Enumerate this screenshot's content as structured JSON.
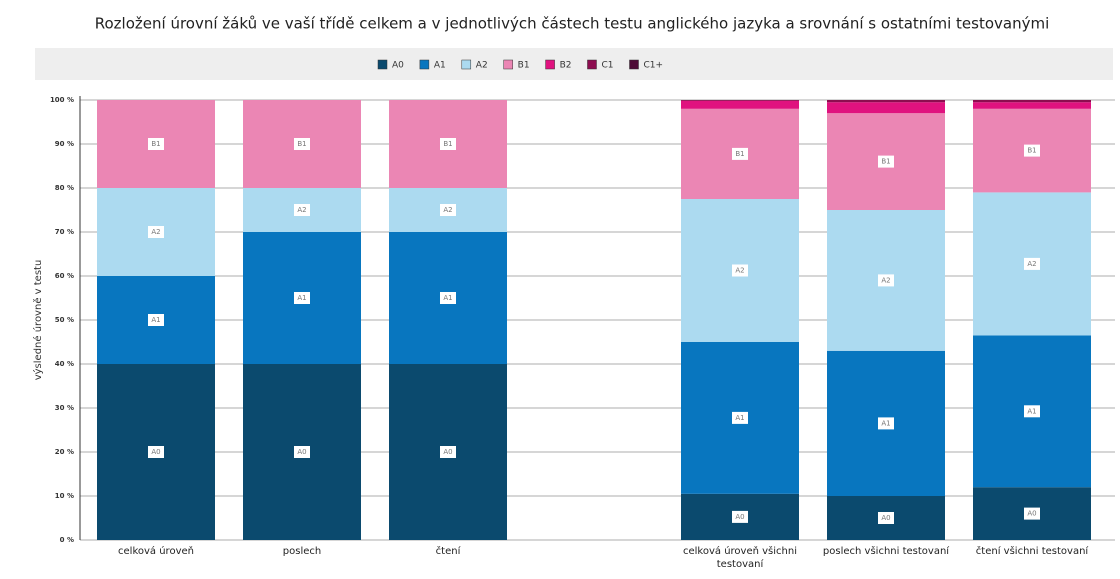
{
  "chart_data": {
    "type": "stacked_bar",
    "title": "Rozložení úrovní žáků ve vaší třídě celkem a v jednotlivých částech testu anglického jazyka a srovnání s ostatními testovanými",
    "ylabel": "výsledné úrovně v testu",
    "categories": [
      "celková úroveň",
      "poslech",
      "čtení",
      null,
      "celková úroveň všichni testovaní",
      "poslech všichni testovaní",
      "čtení všichni testovaní"
    ],
    "series": [
      {
        "name": "A0",
        "color": "#0b4a6e",
        "values": [
          40,
          40,
          40,
          null,
          10.5,
          10,
          12
        ]
      },
      {
        "name": "A1",
        "color": "#0876bf",
        "values": [
          20,
          30,
          30,
          null,
          34.5,
          33,
          34.5
        ]
      },
      {
        "name": "A2",
        "color": "#acdaf0",
        "values": [
          20,
          10,
          10,
          null,
          32.5,
          32,
          32.5
        ]
      },
      {
        "name": "B1",
        "color": "#eb86b4",
        "values": [
          20,
          20,
          20,
          null,
          20.5,
          22,
          19
        ]
      },
      {
        "name": "B2",
        "color": "#e0127f",
        "values": [
          0,
          0,
          0,
          null,
          1.8,
          2.5,
          1.5
        ]
      },
      {
        "name": "C1",
        "color": "#8d0d50",
        "values": [
          0,
          0,
          0,
          null,
          0.2,
          0.5,
          0.5
        ]
      },
      {
        "name": "C1+",
        "color": "#4e0b36",
        "values": [
          0,
          0,
          0,
          null,
          0,
          0,
          0
        ]
      }
    ],
    "ylim": [
      0,
      100
    ],
    "yticks": [
      {
        "value": 0,
        "label": "0 %"
      },
      {
        "value": 10,
        "label": "10 %"
      },
      {
        "value": 20,
        "label": "20 %"
      },
      {
        "value": 30,
        "label": "30 %"
      },
      {
        "value": 40,
        "label": "40 %"
      },
      {
        "value": 50,
        "label": "50 %"
      },
      {
        "value": 60,
        "label": "60 %"
      },
      {
        "value": 70,
        "label": "70 %"
      },
      {
        "value": 80,
        "label": "80 %"
      },
      {
        "value": 90,
        "label": "90 %"
      },
      {
        "value": 100,
        "label": "100 %"
      }
    ],
    "grid": true,
    "legend": "top"
  }
}
